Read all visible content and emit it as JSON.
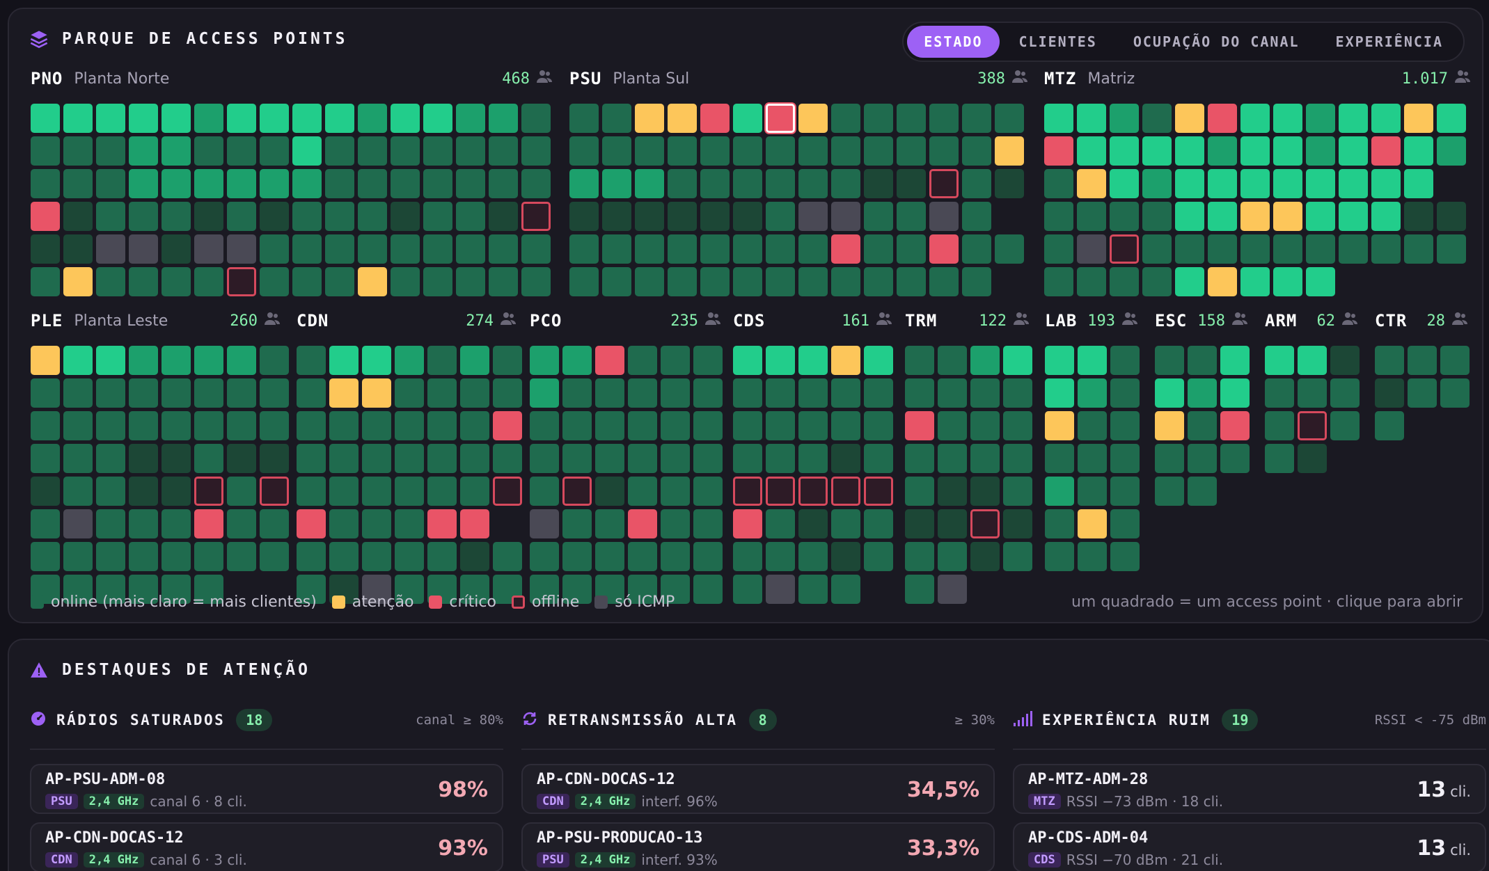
{
  "park": {
    "title": "PARQUE DE ACCESS POINTS",
    "tabs": [
      "ESTADO",
      "CLIENTES",
      "OCUPAÇÃO DO CANAL",
      "EXPERIÊNCIA"
    ],
    "active_tab": "ESTADO",
    "sites": [
      {
        "code": "PNO",
        "name": "Planta Norte",
        "clients": "468",
        "cols": 16,
        "rows": [
          "4444434444344332",
          "2223322242222222",
          "2223333332222222",
          "R12221212221221O",
          "11II1II2222222222",
          "2Y2222O222Y22222"
        ]
      },
      {
        "code": "PSU",
        "name": "Planta Sul",
        "clients": "388",
        "cols": 14,
        "rows": [
          "22YYR4SY222222",
          "2222222222222Y2",
          "33322222211O21",
          "1111112II22I2",
          "22222222R22R22",
          "2222222222222"
        ]
      },
      {
        "code": "MTZ",
        "name": "Matriz",
        "clients": "1.017",
        "cols": 13,
        "rows": [
          "4432YR44344Y4",
          "R444434434R43",
          "2Y4344444444",
          "222244YY44411",
          "2IO2222222222",
          "22224Y444"
        ]
      },
      {
        "code": "PLE",
        "name": "Planta Leste",
        "clients": "260",
        "cols": 8,
        "rows": [
          "Y4433332",
          "22222222",
          "22222222",
          "22211211",
          "12211O2O2",
          "2I222R22",
          "22222222",
          "222222"
        ]
      },
      {
        "code": "CDN",
        "name": "",
        "clients": "274",
        "cols": 7,
        "rows": [
          "2443232",
          "2YY2222",
          "222222R2",
          "2222222",
          "222222O",
          "R222RR",
          "2222212",
          "21I2222"
        ]
      },
      {
        "code": "PCO",
        "name": "",
        "clients": "235",
        "cols": 6,
        "rows": [
          "33R222",
          "322222",
          "222222",
          "222222",
          "2O1222",
          "I22R22",
          "222222",
          "222222"
        ]
      },
      {
        "code": "CDS",
        "name": "",
        "clients": "161",
        "cols": 5,
        "rows": [
          "444Y4",
          "22222",
          "22222",
          "22212",
          "OOOOO",
          "R2122",
          "22212",
          "2I22"
        ]
      },
      {
        "code": "TRM",
        "name": "",
        "clients": "122",
        "cols": 4,
        "rows": [
          "2234",
          "2222",
          "R222",
          "2222",
          "2112",
          "11O1",
          "2212",
          "2I"
        ]
      },
      {
        "code": "LAB",
        "name": "",
        "clients": "193",
        "cols": 3,
        "rows": [
          "442",
          "432",
          "Y22",
          "222",
          "322",
          "2Y2",
          "222"
        ]
      },
      {
        "code": "ESC",
        "name": "",
        "clients": "158",
        "cols": 3,
        "rows": [
          "224",
          "434",
          "Y2R",
          "222",
          "22"
        ]
      },
      {
        "code": "ARM",
        "name": "",
        "clients": "62",
        "cols": 3,
        "rows": [
          "441",
          "222",
          "2O2",
          "21"
        ]
      },
      {
        "code": "CTR",
        "name": "",
        "clients": "28",
        "cols": 3,
        "rows": [
          "222",
          "122",
          "2"
        ]
      }
    ],
    "legend": {
      "online": "online (mais claro = mais clientes)",
      "attention": "atenção",
      "critical": "crítico",
      "offline": "offline",
      "icmp": "só ICMP",
      "note": "um quadrado = um access point · clique para abrir"
    },
    "colors": {
      "online_dim": "#1c4736",
      "online": "#1f6b4e",
      "online_mid": "#1ca06c",
      "online_bright": "#22cd8b",
      "attention": "#fdc65a",
      "critical": "#e95467",
      "offline_border": "#d6495d",
      "icmp": "#4a4955",
      "accent": "#9d61f5"
    }
  },
  "highlights": {
    "title": "DESTAQUES DE ATENÇÃO",
    "columns": [
      {
        "title": "RÁDIOS SATURADOS",
        "count": "18",
        "threshold": "canal ≥ 80%",
        "icon": "gauge-icon",
        "items": [
          {
            "name": "AP-PSU-ADM-08",
            "site": "PSU",
            "band": "2,4 GHz",
            "detail": "canal 6 · 8 cli.",
            "value": "98%"
          },
          {
            "name": "AP-CDN-DOCAS-12",
            "site": "CDN",
            "band": "2,4 GHz",
            "detail": "canal 6 · 3 cli.",
            "value": "93%"
          }
        ]
      },
      {
        "title": "RETRANSMISSÃO ALTA",
        "count": "8",
        "threshold": "≥ 30%",
        "icon": "refresh-icon",
        "items": [
          {
            "name": "AP-CDN-DOCAS-12",
            "site": "CDN",
            "band": "2,4 GHz",
            "detail": "interf. 96%",
            "value": "34,5%"
          },
          {
            "name": "AP-PSU-PRODUCAO-13",
            "site": "PSU",
            "band": "2,4 GHz",
            "detail": "interf. 93%",
            "value": "33,3%"
          }
        ]
      },
      {
        "title": "EXPERIÊNCIA RUIM",
        "count": "19",
        "threshold": "RSSI < -75 dBm",
        "icon": "signal-bars-icon",
        "items": [
          {
            "name": "AP-MTZ-ADM-28",
            "site": "MTZ",
            "band": "",
            "detail": "RSSI −73 dBm · 18 cli.",
            "value": "13",
            "unit": "cli."
          },
          {
            "name": "AP-CDS-ADM-04",
            "site": "CDS",
            "band": "",
            "detail": "RSSI −70 dBm · 21 cli.",
            "value": "13",
            "unit": "cli."
          }
        ]
      }
    ]
  }
}
